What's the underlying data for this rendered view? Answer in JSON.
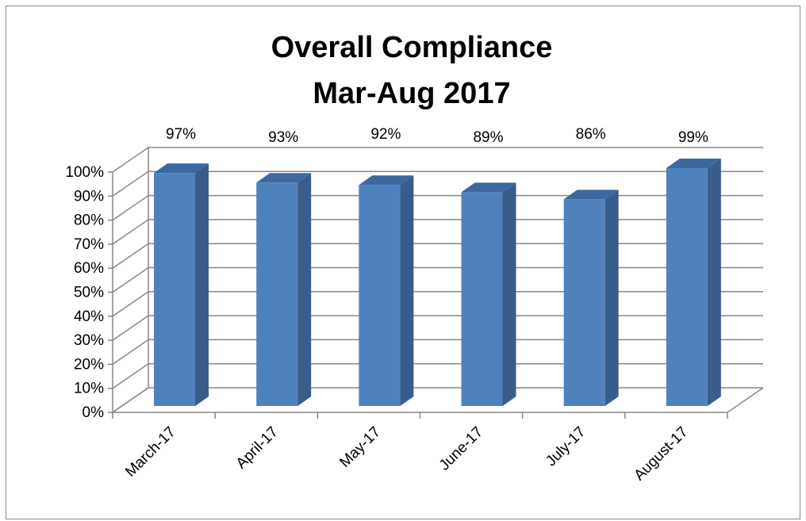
{
  "chart_data": {
    "type": "bar3d",
    "title": "Overall Compliance",
    "subtitle": "Mar-Aug 2017",
    "categories": [
      "March-17",
      "April-17",
      "May-17",
      "June-17",
      "July-17",
      "August-17"
    ],
    "values": [
      97,
      93,
      92,
      89,
      86,
      99
    ],
    "value_labels": [
      "97%",
      "93%",
      "92%",
      "89%",
      "86%",
      "99%"
    ],
    "color": "#4f81bd",
    "ylim": [
      0,
      100
    ],
    "yticks": [
      {
        "value": 0,
        "label": "0%"
      },
      {
        "value": 10,
        "label": "10%"
      },
      {
        "value": 20,
        "label": "20%"
      },
      {
        "value": 30,
        "label": "30%"
      },
      {
        "value": 40,
        "label": "40%"
      },
      {
        "value": 50,
        "label": "50%"
      },
      {
        "value": 60,
        "label": "60%"
      },
      {
        "value": 70,
        "label": "70%"
      },
      {
        "value": 80,
        "label": "80%"
      },
      {
        "value": 90,
        "label": "90%"
      },
      {
        "value": 100,
        "label": "100%"
      }
    ],
    "grid": true
  }
}
